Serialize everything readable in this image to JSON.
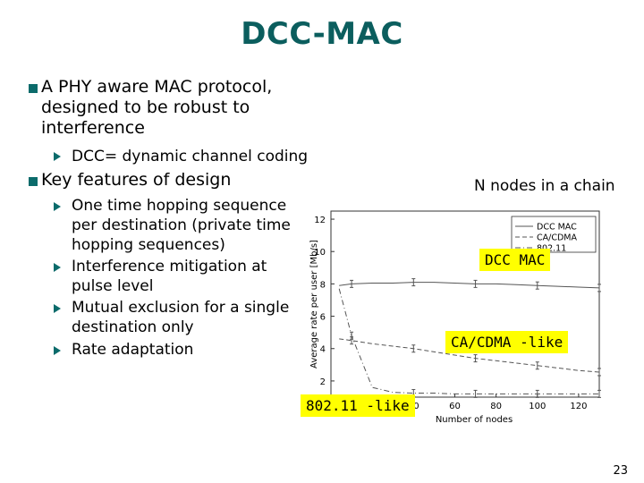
{
  "slide": {
    "title": "DCC-MAC",
    "bullets": [
      {
        "text_lines": [
          "A PHY aware MAC protocol,",
          "designed to be robust to",
          "interference"
        ]
      },
      {
        "text_lines": [
          "Key features of design"
        ]
      }
    ],
    "sub_bullets_1": [
      {
        "text_lines": [
          "DCC= dynamic channel coding"
        ]
      }
    ],
    "sub_bullets_2": [
      {
        "text_lines": [
          "One time hopping sequence",
          "per destination (private time",
          "hopping sequences)"
        ]
      },
      {
        "text_lines": [
          "Interference mitigation at",
          "pulse level"
        ]
      },
      {
        "text_lines": [
          "Mutual exclusion for a single",
          "destination only"
        ]
      },
      {
        "text_lines": [
          "Rate adaptation"
        ]
      }
    ],
    "chain_note": "N nodes in a chain",
    "callouts": {
      "dcc_mac": "DCC MAC",
      "cdma": "CA/CDMA -like",
      "wifi": "802.11 -like"
    },
    "page_number": "23",
    "colors": {
      "accent": "#0b6b6b",
      "title": "#0b5e5e",
      "callout_bg": "#ffff00"
    }
  },
  "chart_data": {
    "type": "line",
    "xlabel": "Number of nodes",
    "ylabel": "Average rate per user [Mb/s]",
    "xlim": [
      0,
      130
    ],
    "ylim": [
      1,
      12.5
    ],
    "x_ticks": [
      40,
      60,
      80,
      100,
      120
    ],
    "y_ticks": [
      2,
      4,
      6,
      8,
      10,
      12
    ],
    "legend_placement": "top-right",
    "series": [
      {
        "name": "DCC MAC",
        "style": "solid",
        "x": [
          4,
          10,
          20,
          30,
          40,
          50,
          60,
          70,
          80,
          90,
          100,
          110,
          120,
          130
        ],
        "y": [
          7.9,
          8.0,
          8.05,
          8.05,
          8.1,
          8.1,
          8.05,
          8.0,
          8.0,
          7.95,
          7.9,
          7.85,
          7.8,
          7.75
        ]
      },
      {
        "name": "CA/CDMA",
        "style": "dashed",
        "x": [
          4,
          10,
          20,
          30,
          40,
          50,
          60,
          70,
          80,
          90,
          100,
          110,
          120,
          130
        ],
        "y": [
          4.6,
          4.5,
          4.3,
          4.15,
          4.0,
          3.8,
          3.6,
          3.4,
          3.25,
          3.1,
          2.95,
          2.8,
          2.65,
          2.55
        ]
      },
      {
        "name": "802.11",
        "style": "dash-dot",
        "x": [
          4,
          10,
          20,
          30,
          40,
          50,
          60,
          70,
          80,
          90,
          100,
          110,
          120,
          130
        ],
        "y": [
          7.7,
          4.8,
          1.6,
          1.3,
          1.25,
          1.25,
          1.2,
          1.2,
          1.2,
          1.2,
          1.2,
          1.2,
          1.2,
          1.2
        ]
      }
    ]
  }
}
